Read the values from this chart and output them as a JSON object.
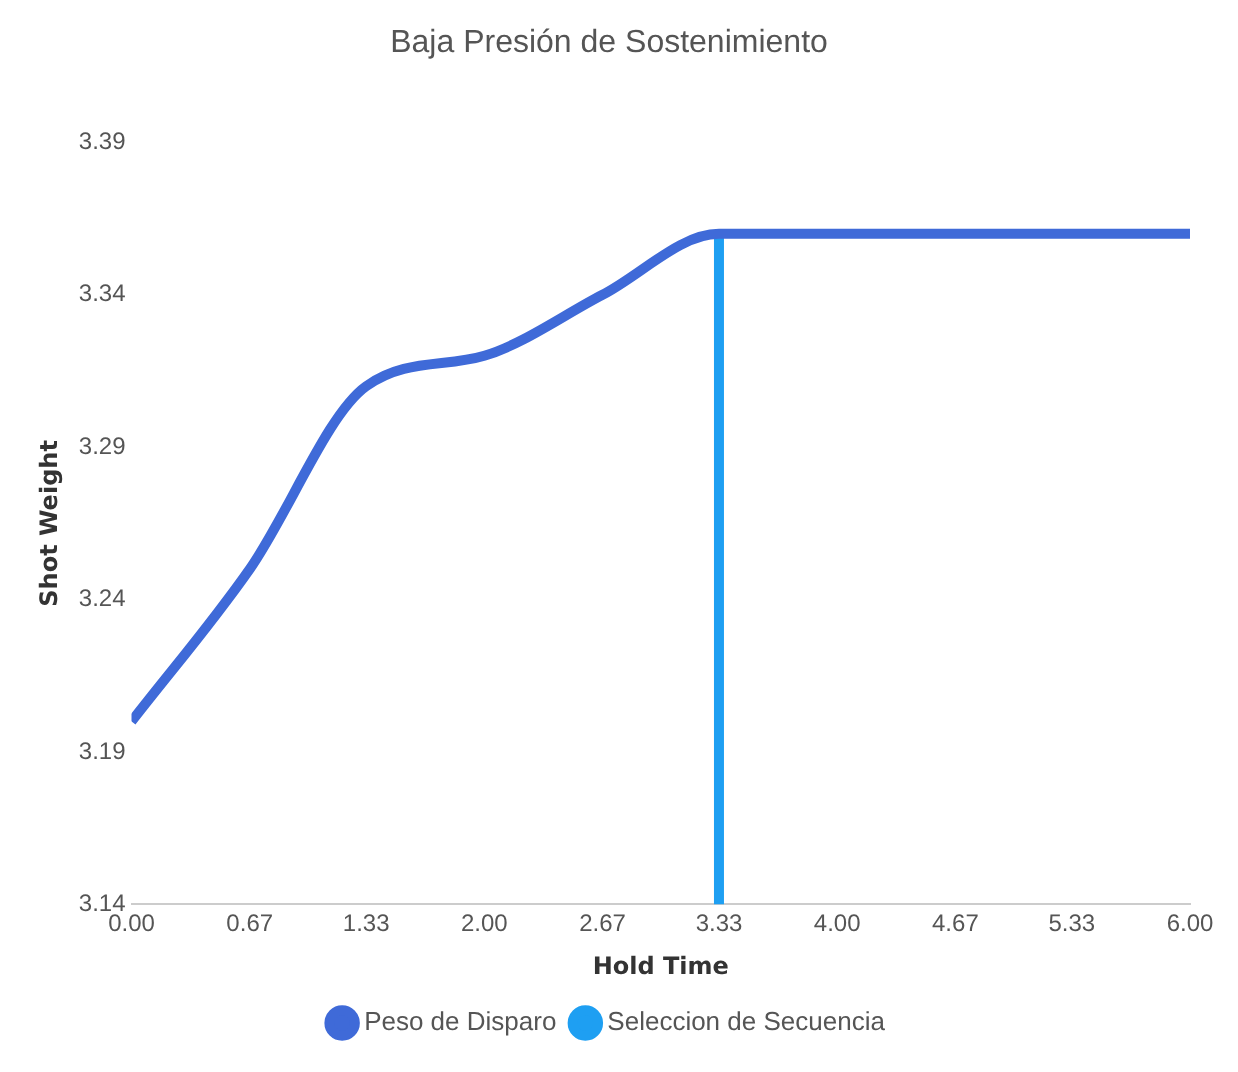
{
  "chart_data": {
    "type": "line",
    "title": "Baja Presión de Sostenimiento",
    "xlabel": "Hold Time",
    "ylabel": "Shot Weight",
    "series": [
      {
        "name": "Peso de Disparo",
        "color": "#3f6ad8",
        "x": [
          0,
          0.67,
          1.33,
          2,
          2.67,
          3.33,
          4,
          4.67,
          5.33,
          6
        ],
        "values": [
          3.2,
          3.25,
          3.31,
          3.32,
          3.34,
          3.36,
          3.36,
          3.36,
          3.36,
          3.36
        ]
      },
      {
        "name": "Seleccion de Secuencia",
        "color": "#1e9ff2",
        "x": [
          3.33,
          3.33
        ],
        "values": [
          3.14,
          3.36
        ]
      }
    ],
    "xlim": [
      0,
      6
    ],
    "xticks": [
      {
        "value": 0,
        "label": "0.00"
      },
      0.67,
      1.33,
      {
        "value": 2,
        "label": "2.00"
      },
      2.67,
      3.33,
      {
        "value": 4,
        "label": "4.00"
      },
      4.67,
      5.33,
      {
        "value": 6,
        "label": "6.00"
      }
    ],
    "ylim": [
      3.14,
      3.39
    ],
    "yticks": [
      3.14,
      3.19,
      3.24,
      3.29,
      3.34,
      3.39
    ],
    "grid": false,
    "legend": "bottom",
    "marker": "none",
    "line_style": "solid"
  }
}
